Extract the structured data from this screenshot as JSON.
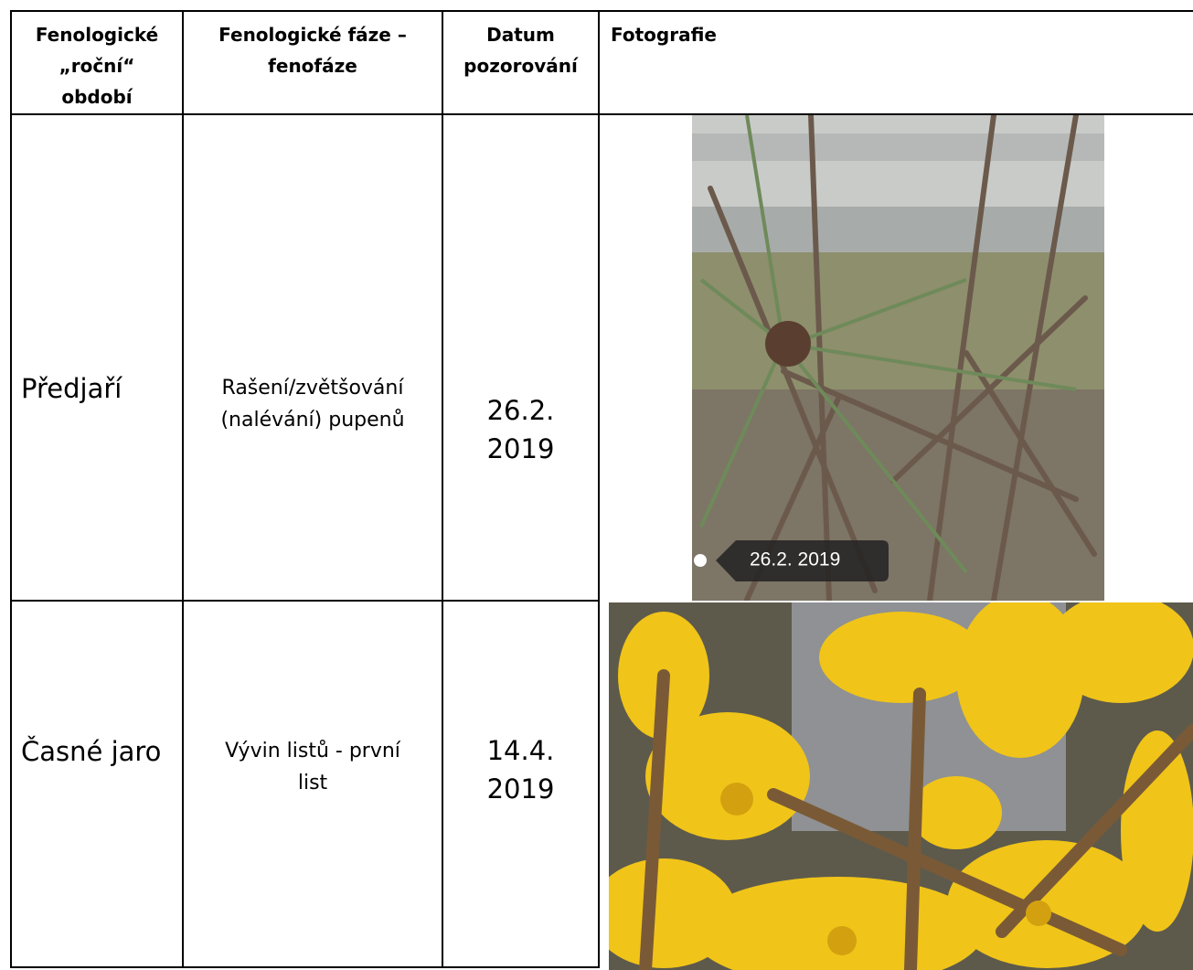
{
  "table": {
    "header": [
      [
        "Fenologické",
        "„roční“",
        "období"
      ],
      [
        "Fenologické fáze –",
        "fenofáze"
      ],
      [
        "Datum",
        "pozorování"
      ],
      [
        "Fotografie"
      ]
    ],
    "rows": [
      {
        "season": [
          "Předjaří"
        ],
        "phase": [
          "Rašení/zvětšování",
          "(nalévání) pupenů"
        ],
        "date": [
          "26.2.",
          "2019"
        ],
        "photo_caption": "26.2. 2019"
      },
      {
        "season": [
          "Časné jaro"
        ],
        "phase": [
          "Vývin listů - první",
          "list"
        ],
        "date": [
          "14.4.",
          "2019"
        ]
      }
    ]
  }
}
